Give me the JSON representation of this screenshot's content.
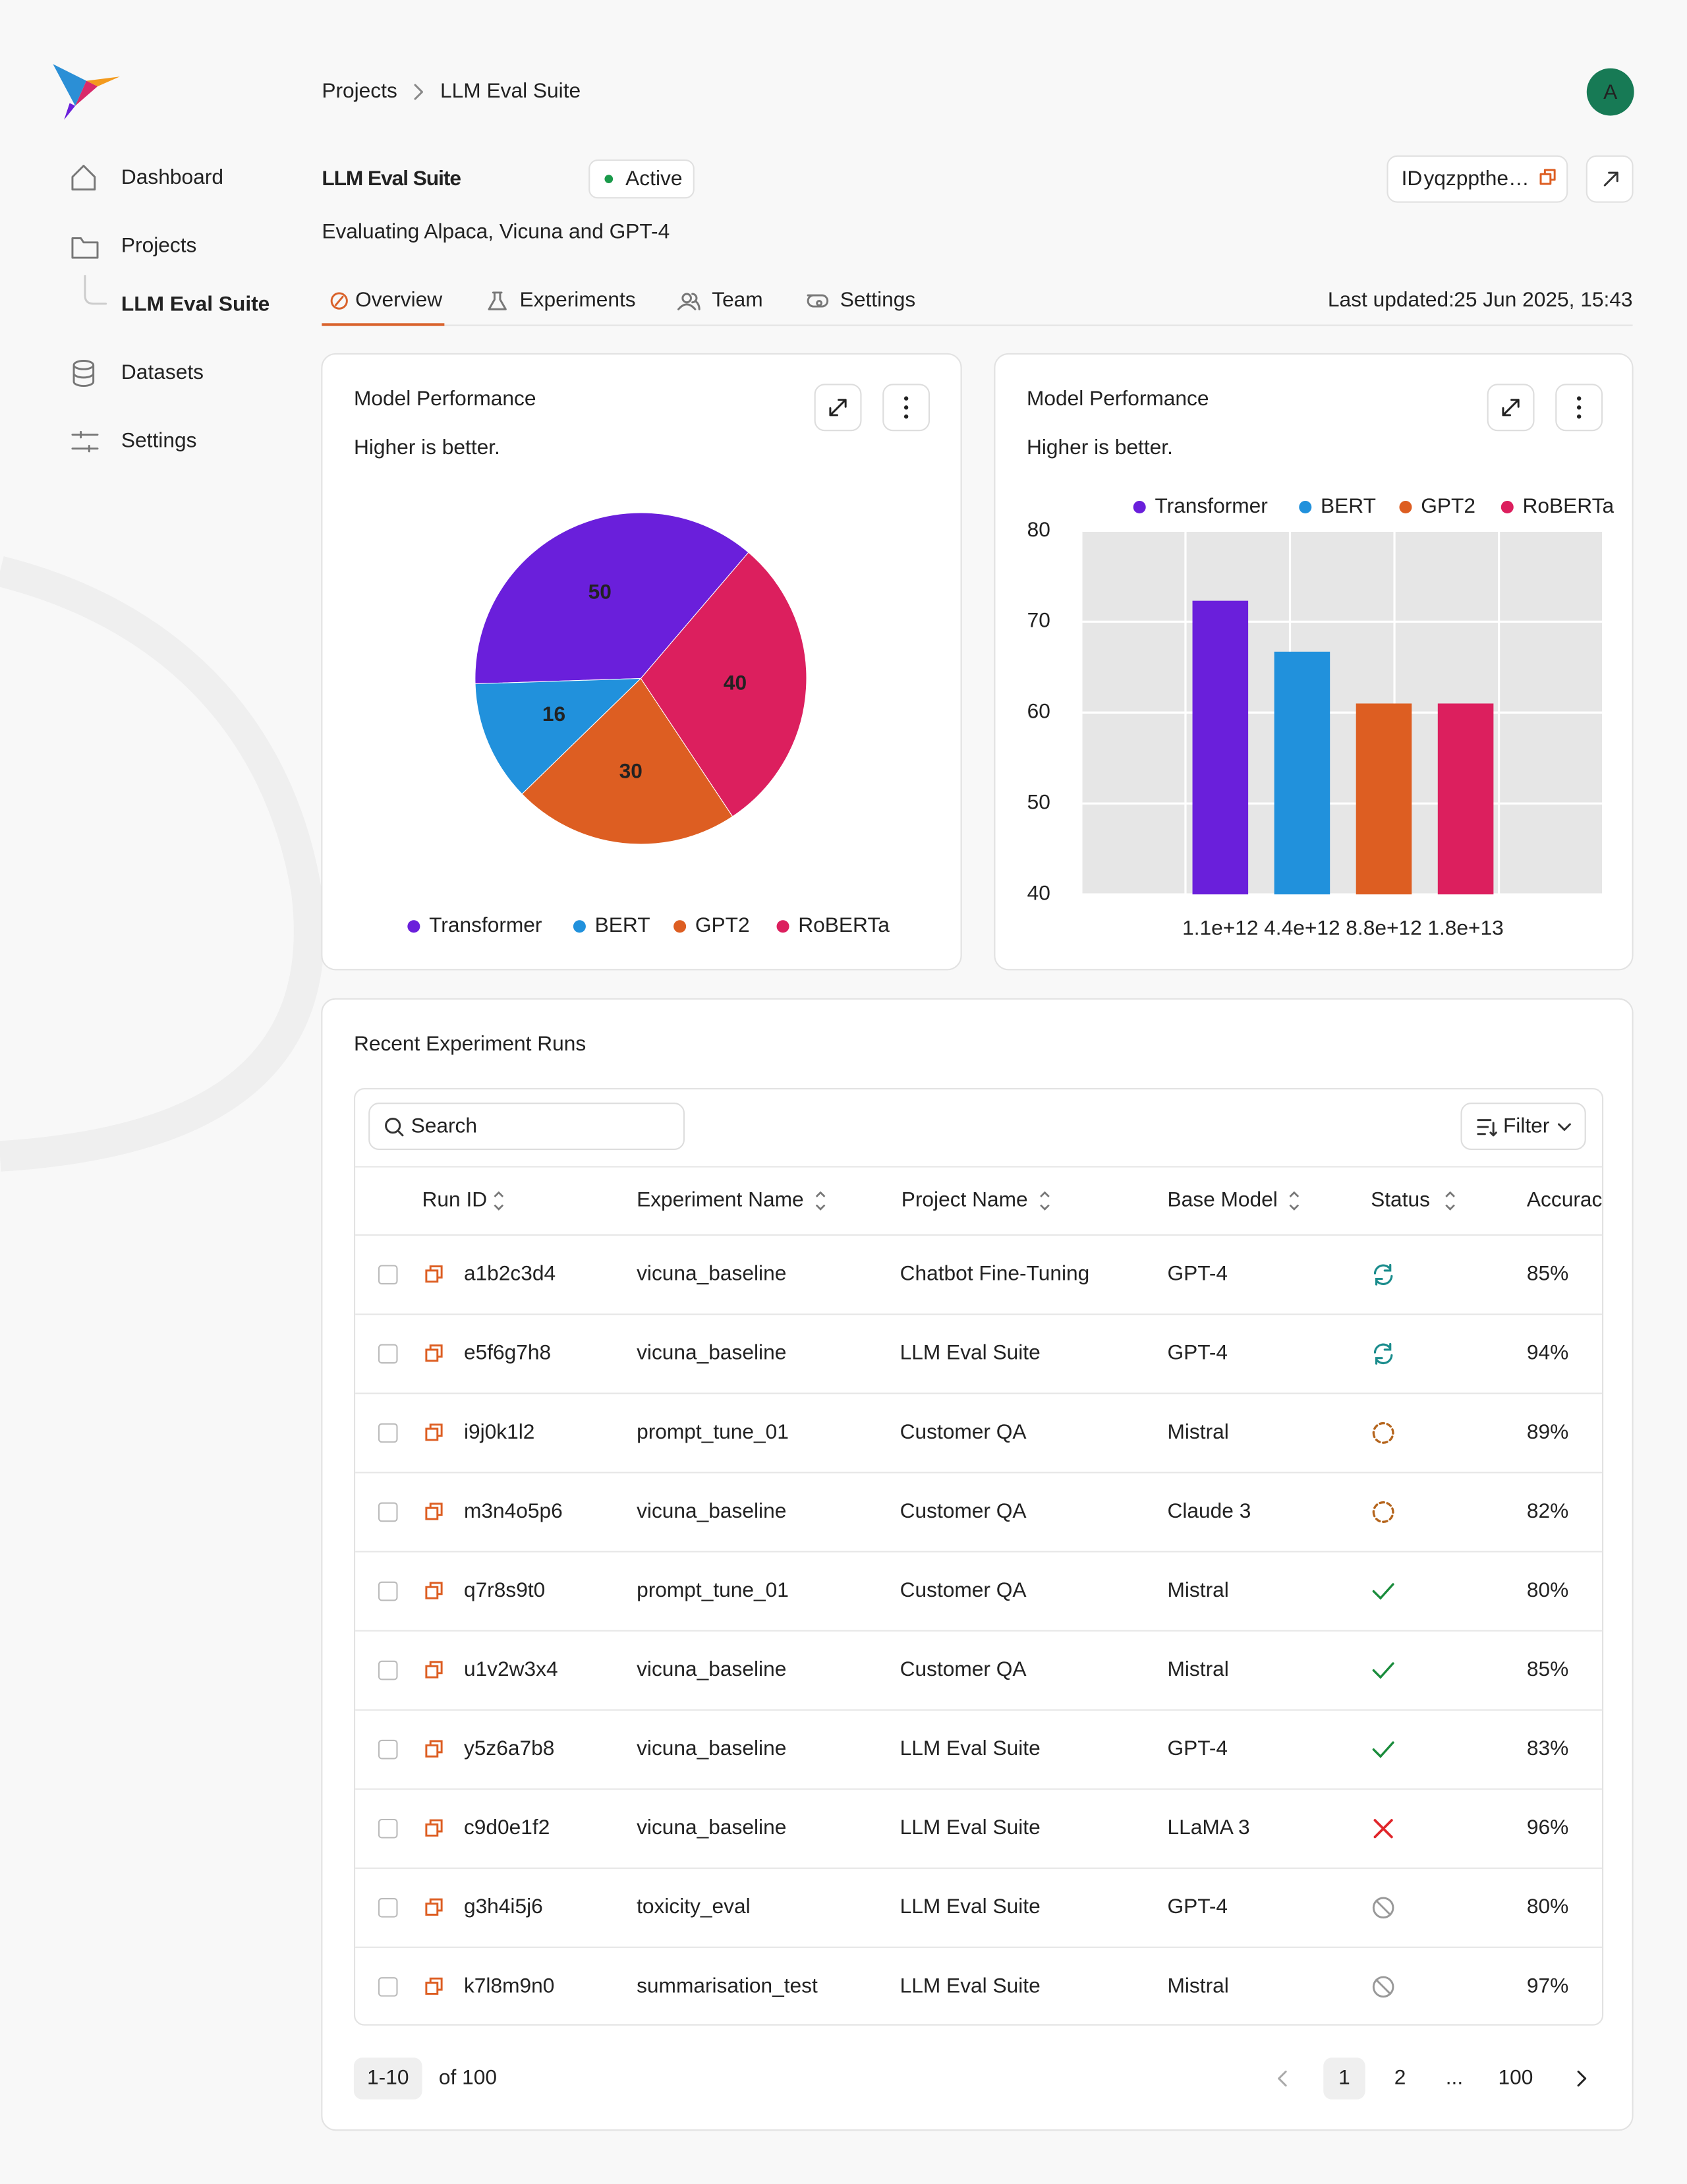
{
  "sidebar": {
    "nav": [
      "Dashboard",
      "Projects",
      "LLM Eval Suite",
      "Datasets",
      "Settings"
    ]
  },
  "header": {
    "breadcrumb": [
      "Projects",
      "LLM Eval Suite"
    ],
    "avatar": "A",
    "title": "LLM Eval Suite",
    "status": "Active",
    "id_label": "ID",
    "id_value": "yqzppthe…",
    "subtitle": "Evaluating Alpaca, Vicuna and GPT-4"
  },
  "tabs": [
    "Overview",
    "Experiments",
    "Team",
    "Settings"
  ],
  "last_updated_label": "Last updated:",
  "last_updated": "25 Jun 2025, 15:43",
  "chart_data": [
    {
      "type": "pie",
      "title": "Model Performance",
      "subtitle": "Higher is better.",
      "categories": [
        "Transformer",
        "BERT",
        "GPT2",
        "RoBERTa"
      ],
      "values": [
        50,
        16,
        30,
        40
      ],
      "colors": [
        "#6a1fdb",
        "#2191dc",
        "#dd5e22",
        "#dc1f5e"
      ],
      "direction": "counterclockwise",
      "legend": "bottom"
    },
    {
      "type": "bar",
      "title": "Model Performance",
      "subtitle": "Higher is better.",
      "categories": [
        "1.1e+12",
        "4.4e+12",
        "8.8e+12",
        "1.8e+13"
      ],
      "series": [
        {
          "name": "Transformer",
          "color": "#6a1fdb",
          "values": [
            72.3,
            null,
            null,
            null
          ]
        },
        {
          "name": "BERT",
          "color": "#2191dc",
          "values": [
            null,
            66.7,
            null,
            null
          ]
        },
        {
          "name": "GPT2",
          "color": "#dd5e22",
          "values": [
            null,
            null,
            61,
            null
          ]
        },
        {
          "name": "RoBERTa",
          "color": "#dc1f5e",
          "values": [
            null,
            null,
            null,
            61
          ]
        }
      ],
      "ylim": [
        40,
        80
      ],
      "yticks": [
        40,
        50,
        60,
        70,
        80
      ],
      "grid": true,
      "legend": "top"
    }
  ],
  "table": {
    "title": "Recent Experiment Runs",
    "search_placeholder": "Search",
    "filter": "Filter",
    "columns": [
      "Run ID",
      "Experiment Name",
      "Project Name",
      "Base Model",
      "Status",
      "Accuracy"
    ],
    "rows": [
      {
        "run_id": "a1b2c3d4",
        "experiment": "vicuna_baseline",
        "project": "Chatbot Fine-Tuning",
        "model": "GPT-4",
        "accuracy": "85%"
      },
      {
        "run_id": "e5f6g7h8",
        "experiment": "vicuna_baseline",
        "project": "LLM Eval Suite",
        "model": "GPT-4",
        "accuracy": "94%"
      },
      {
        "run_id": "i9j0k1l2",
        "experiment": "prompt_tune_01",
        "project": "Customer QA",
        "model": "Mistral",
        "accuracy": "89%"
      },
      {
        "run_id": "m3n4o5p6",
        "experiment": "vicuna_baseline",
        "project": "Customer QA",
        "model": "Claude 3",
        "accuracy": "82%"
      },
      {
        "run_id": "q7r8s9t0",
        "experiment": "prompt_tune_01",
        "project": "Customer QA",
        "model": "Mistral",
        "accuracy": "80%"
      },
      {
        "run_id": "u1v2w3x4",
        "experiment": "vicuna_baseline",
        "project": "Customer QA",
        "model": "Mistral",
        "accuracy": "85%"
      },
      {
        "run_id": "y5z6a7b8",
        "experiment": "vicuna_baseline",
        "project": "LLM Eval Suite",
        "model": "GPT-4",
        "accuracy": "83%"
      },
      {
        "run_id": "c9d0e1f2",
        "experiment": "vicuna_baseline",
        "project": "LLM Eval Suite",
        "model": "LLaMA 3",
        "accuracy": "96%"
      },
      {
        "run_id": "g3h4i5j6",
        "experiment": "toxicity_eval",
        "project": "LLM Eval Suite",
        "model": "GPT-4",
        "accuracy": "80%"
      },
      {
        "run_id": "k7l8m9n0",
        "experiment": "summarisation_test",
        "project": "LLM Eval Suite",
        "model": "Mistral",
        "accuracy": "97%"
      }
    ]
  },
  "pagination": {
    "range": "1-10",
    "total": "of 100",
    "pages": [
      "1",
      "2",
      "...",
      "100"
    ]
  }
}
